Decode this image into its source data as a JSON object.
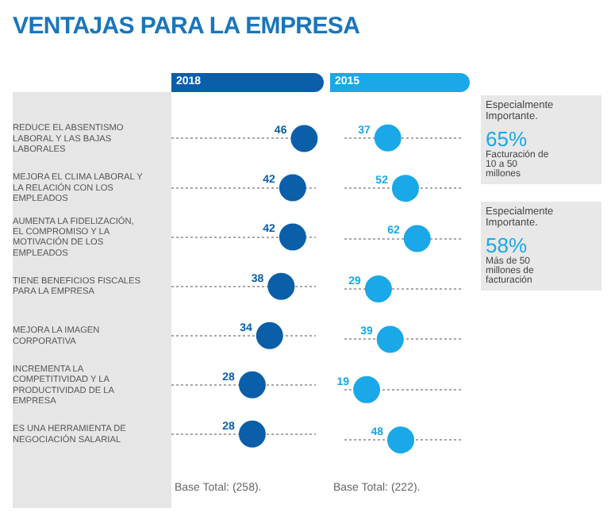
{
  "chart_data": [
    {
      "type": "scatter",
      "title": "VENTAJAS PARA LA EMPRESA",
      "orientation": "horizontal",
      "categories": [
        "REDUCE EL ABSENTISMO LABORAL Y LAS BAJAS LABORALES",
        "MEJORA EL CLIMA LABORAL Y LA RELACIÓN CON LOS EMPLEADOS",
        "AUMENTA LA FIDELIZACIÓN, EL COMPROMISO Y LA MOTIVACIÓN DE LOS EMPLEADOS",
        "TIENE BENEFICIOS FISCALES PARA LA EMPRESA",
        "MEJORA LA IMAGEN CORPORATIVA",
        "INCREMENTA LA COMPETITIVIDAD Y LA PRODUCTIVIDAD DE LA EMPRESA",
        "ES UNA HERRAMIENTA DE NEGOCIACIÓN SALARIAL"
      ],
      "series": [
        {
          "name": "2018",
          "color": "#0b5fa8",
          "values": [
            46,
            42,
            42,
            38,
            34,
            28,
            28
          ]
        }
      ],
      "marker": "circle",
      "line_style": "dotted",
      "grid": "y",
      "legend": "top",
      "data_labels": true,
      "tick_labels": "y",
      "annotations": [
        "Base Total: (258)."
      ]
    },
    {
      "type": "scatter",
      "orientation": "horizontal",
      "series": [
        {
          "name": "2015",
          "color": "#1aa8e8",
          "values": [
            37,
            52,
            62,
            29,
            39,
            19,
            48
          ]
        }
      ],
      "marker": "circle",
      "line_style": "dotted",
      "grid": "y",
      "legend": "top",
      "data_labels": true,
      "tick_labels": false,
      "annotations": [
        "Base Total: (222)."
      ]
    },
    {
      "type": "other",
      "annotations": [
        "Especialmente Importante.",
        "65%",
        "Facturación de 10 a 50 millones",
        "Especialmente Importante.",
        "58%",
        "Más de 50 millones de facturación"
      ]
    }
  ]
}
